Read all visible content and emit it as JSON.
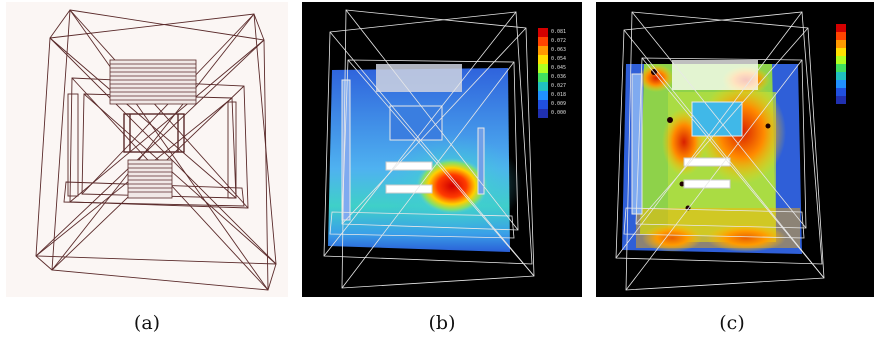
{
  "figure": {
    "panels": [
      {
        "id": "a",
        "caption": "(a)",
        "rendering": "wireframe"
      },
      {
        "id": "b",
        "caption": "(b)",
        "rendering": "contour"
      },
      {
        "id": "c",
        "caption": "(c)",
        "rendering": "contour"
      }
    ],
    "colorbar_b": {
      "labels": [
        "0.081",
        "0.072",
        "0.063",
        "0.054",
        "0.045",
        "0.036",
        "0.027",
        "0.018",
        "0.009",
        "0.000"
      ]
    },
    "colorbar_c": {
      "labels": [
        "",
        "",
        "",
        "",
        "",
        "",
        "",
        "",
        "",
        ""
      ]
    },
    "colors": {
      "wire_a": "#5a2a2a",
      "wire_bc": "#e8e8e8",
      "scale": [
        "#d40000",
        "#ff4400",
        "#ff9900",
        "#ffe000",
        "#b0ff20",
        "#40e060",
        "#20c0c0",
        "#2090ff",
        "#2050e0",
        "#2030b0"
      ]
    }
  }
}
